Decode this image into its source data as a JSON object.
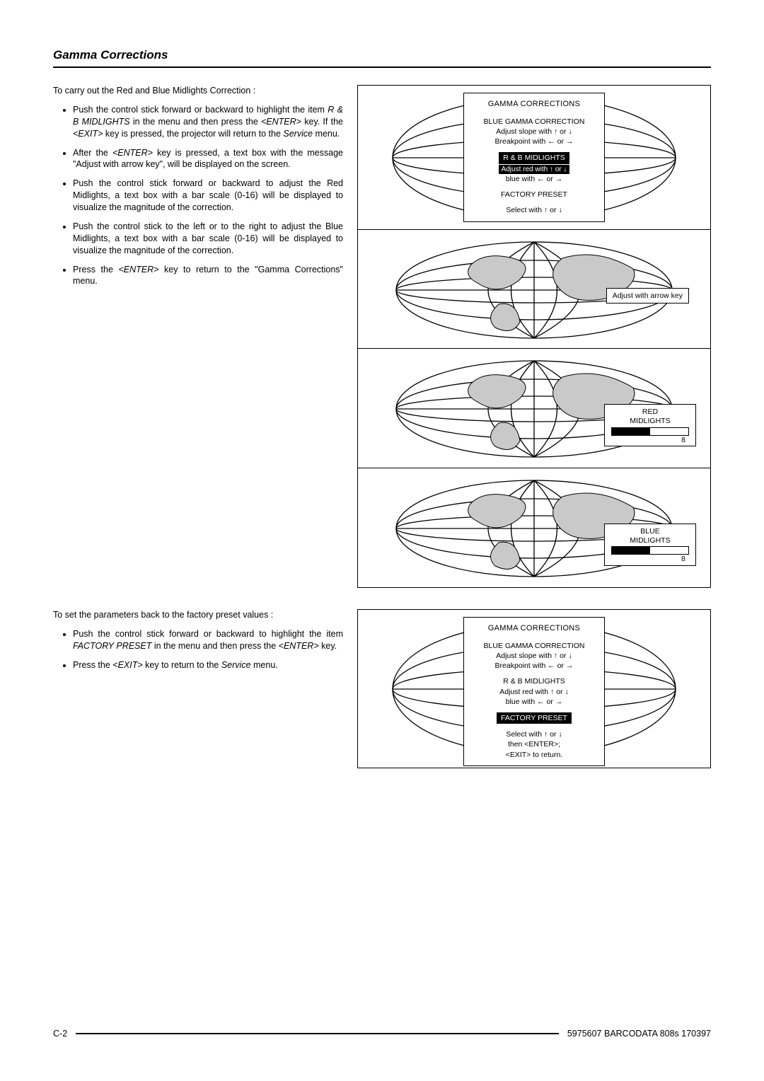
{
  "page": {
    "title": "Gamma Corrections",
    "section1_intro": "To carry out the Red and Blue Midlights Correction :",
    "section1_bullets": {
      "b0a": "Push the control stick forward or backward to highlight the item ",
      "b0b": "R & B MIDLIGHTS",
      "b0c": " in the menu and then press the ",
      "b0d": "<ENTER>",
      "b0e": " key. If the ",
      "b0f": "<EXIT>",
      "b0g": " key is pressed, the projector will return to the ",
      "b0h": "Service",
      "b0i": " menu.",
      "b1a": "After the ",
      "b1b": "<ENTER>",
      "b1c": " key is pressed, a text box with the message \"Adjust with arrow key\", will be displayed on the screen.",
      "b2": "Push the control stick forward or backward to adjust the Red Midlights, a text box with a bar scale (0-16) will be displayed to visualize the magnitude of the correction.",
      "b3": "Push the control stick to the left or to the right to adjust the Blue Midlights, a text box with a bar scale (0-16) will be displayed to visualize the magnitude of the correction.",
      "b4a": "Press the  ",
      "b4b": "<ENTER>",
      "b4c": " key to return to the \"Gamma Corrections\" menu."
    },
    "section2_intro": "To set the parameters back to the factory preset values :",
    "section2_bullets": {
      "b0a": "Push the control stick forward or backward to highlight the item ",
      "b0b": "FACTORY PRESET",
      "b0c": " in the menu and then press the ",
      "b0d": "<ENTER>",
      "b0e": " key.",
      "b1a": "Press the ",
      "b1b": "<EXIT>",
      "b1c": " key to return to the ",
      "b1d": "Service",
      "b1e": " menu."
    },
    "footer_left": "C-2",
    "footer_right": "5975607 BARCODATA 808s 170397"
  },
  "glyphs": {
    "up": "↑",
    "down": "↓",
    "left": "←",
    "right": "→"
  },
  "panelA": {
    "title": "GAMMA  CORRECTIONS",
    "l1": "BLUE GAMMA CORRECTION",
    "l2a": "Adjust slope with ",
    "l2b": " or ",
    "l3a": "Breakpoint with ",
    "l3b": " or ",
    "mid": "R & B MIDLIGHTS",
    "l4a": "Adjust red with ",
    "l4b": " or ",
    "l5a": "blue with ",
    "l5b": " or ",
    "fp": "FACTORY PRESET",
    "sel_a": "Select with ",
    "sel_b": " or "
  },
  "panelB": {
    "label": "Adjust with arrow key"
  },
  "panelC": {
    "t1": "RED",
    "t2": "MIDLIGHTS",
    "value": "8",
    "fill_pct": 50
  },
  "panelD": {
    "t1": "BLUE",
    "t2": "MIDLIGHTS",
    "value": "8",
    "fill_pct": 50
  },
  "panelE": {
    "title": "GAMMA  CORRECTIONS",
    "l1": "BLUE GAMMA CORRECTION",
    "l2a": "Adjust slope with ",
    "l2b": " or ",
    "l3a": "Breakpoint with ",
    "l3b": " or ",
    "mid": "R & B MIDLIGHTS",
    "l4a": "Adjust red with ",
    "l4b": " or ",
    "l5a": "blue with ",
    "l5b": " or ",
    "fp": "FACTORY PRESET",
    "sel1a": "Select with ",
    "sel1b": " or ",
    "sel2": "then <ENTER>;",
    "sel3": "<EXIT> to return."
  },
  "globe_svg": {
    "width_panel": 430,
    "height_panel": 185
  }
}
